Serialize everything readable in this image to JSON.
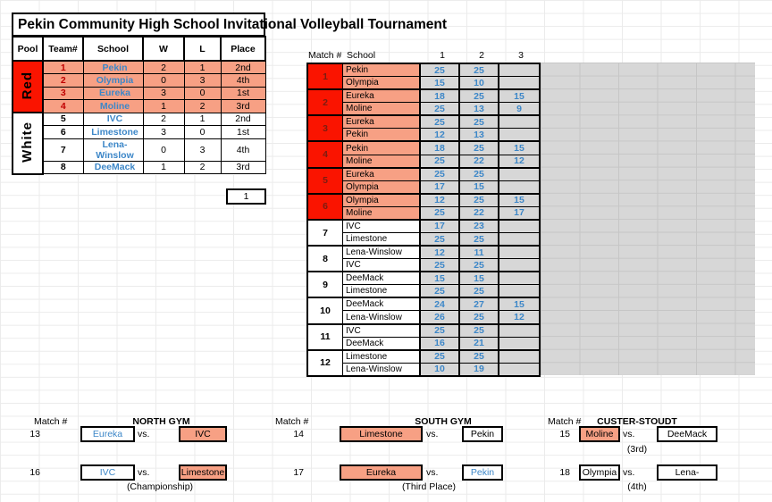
{
  "title": "Pekin Community High School Invitational Volleyball Tournament",
  "colors": {
    "pool_red": "#FA1400",
    "salmon": "#F7A084",
    "score_gray": "#D7D7D7",
    "blue_text": "#3D87C8",
    "match_num_dark_red": "#7B1D12",
    "team_num_red": "#C00000"
  },
  "seed_box": "1",
  "pool_table": {
    "headers": [
      "Pool",
      "Team#",
      "School",
      "W",
      "L",
      "Place"
    ],
    "pools": [
      {
        "name": "Red",
        "teams": [
          {
            "num": "1",
            "school": "Pekin",
            "w": "2",
            "l": "1",
            "place": "2nd"
          },
          {
            "num": "2",
            "school": "Olympia",
            "w": "0",
            "l": "3",
            "place": "4th"
          },
          {
            "num": "3",
            "school": "Eureka",
            "w": "3",
            "l": "0",
            "place": "1st"
          },
          {
            "num": "4",
            "school": "Moline",
            "w": "1",
            "l": "2",
            "place": "3rd"
          }
        ]
      },
      {
        "name": "White",
        "teams": [
          {
            "num": "5",
            "school": "IVC",
            "w": "2",
            "l": "1",
            "place": "2nd"
          },
          {
            "num": "6",
            "school": "Limestone",
            "w": "3",
            "l": "0",
            "place": "1st"
          },
          {
            "num": "7",
            "school": "Lena-Winslow",
            "w": "0",
            "l": "3",
            "place": "4th"
          },
          {
            "num": "8",
            "school": "DeeMack",
            "w": "1",
            "l": "2",
            "place": "3rd"
          }
        ]
      }
    ]
  },
  "match_table": {
    "headers": {
      "match": "Match #",
      "school": "School",
      "g1": "1",
      "g2": "2",
      "g3": "3"
    },
    "matches": [
      {
        "num": "1",
        "pool": "red",
        "rows": [
          {
            "school": "Pekin",
            "scores": [
              "25",
              "25",
              ""
            ]
          },
          {
            "school": "Olympia",
            "scores": [
              "15",
              "10",
              ""
            ]
          }
        ]
      },
      {
        "num": "2",
        "pool": "red",
        "rows": [
          {
            "school": "Eureka",
            "scores": [
              "18",
              "25",
              "15"
            ]
          },
          {
            "school": "Moline",
            "scores": [
              "25",
              "13",
              "9"
            ]
          }
        ]
      },
      {
        "num": "3",
        "pool": "red",
        "rows": [
          {
            "school": "Eureka",
            "scores": [
              "25",
              "25",
              ""
            ]
          },
          {
            "school": "Pekin",
            "scores": [
              "12",
              "13",
              ""
            ]
          }
        ]
      },
      {
        "num": "4",
        "pool": "red",
        "rows": [
          {
            "school": "Pekin",
            "scores": [
              "18",
              "25",
              "15"
            ]
          },
          {
            "school": "Moline",
            "scores": [
              "25",
              "22",
              "12"
            ]
          }
        ]
      },
      {
        "num": "5",
        "pool": "red",
        "rows": [
          {
            "school": "Eureka",
            "scores": [
              "25",
              "25",
              ""
            ]
          },
          {
            "school": "Olympia",
            "scores": [
              "17",
              "15",
              ""
            ]
          }
        ]
      },
      {
        "num": "6",
        "pool": "red",
        "rows": [
          {
            "school": "Olympia",
            "scores": [
              "12",
              "25",
              "15"
            ]
          },
          {
            "school": "Moline",
            "scores": [
              "25",
              "22",
              "17"
            ]
          }
        ]
      },
      {
        "num": "7",
        "pool": "white",
        "rows": [
          {
            "school": "IVC",
            "scores": [
              "17",
              "23",
              ""
            ]
          },
          {
            "school": "Limestone",
            "scores": [
              "25",
              "25",
              ""
            ]
          }
        ]
      },
      {
        "num": "8",
        "pool": "white",
        "rows": [
          {
            "school": "Lena-Winslow",
            "scores": [
              "12",
              "11",
              ""
            ]
          },
          {
            "school": "IVC",
            "scores": [
              "25",
              "25",
              ""
            ]
          }
        ]
      },
      {
        "num": "9",
        "pool": "white",
        "rows": [
          {
            "school": "DeeMack",
            "scores": [
              "15",
              "15",
              ""
            ]
          },
          {
            "school": "Limestone",
            "scores": [
              "25",
              "25",
              ""
            ]
          }
        ]
      },
      {
        "num": "10",
        "pool": "white",
        "rows": [
          {
            "school": "DeeMack",
            "scores": [
              "24",
              "27",
              "15"
            ]
          },
          {
            "school": "Lena-Winslow",
            "scores": [
              "26",
              "25",
              "12"
            ]
          }
        ]
      },
      {
        "num": "11",
        "pool": "white",
        "rows": [
          {
            "school": "IVC",
            "scores": [
              "25",
              "25",
              ""
            ]
          },
          {
            "school": "DeeMack",
            "scores": [
              "16",
              "21",
              ""
            ]
          }
        ]
      },
      {
        "num": "12",
        "pool": "white",
        "rows": [
          {
            "school": "Limestone",
            "scores": [
              "25",
              "25",
              ""
            ]
          },
          {
            "school": "Lena-Winslow",
            "scores": [
              "10",
              "19",
              ""
            ]
          }
        ]
      }
    ]
  },
  "bottom_sections": [
    {
      "id": "north",
      "match_header": "Match #",
      "gym": "NORTH GYM",
      "matches": [
        {
          "num": "13",
          "left": {
            "label": "Eureka",
            "fill": "white",
            "text": "blue"
          },
          "vs": "vs.",
          "right": {
            "label": "IVC",
            "fill": "salmon",
            "text": "black"
          },
          "note": ""
        },
        {
          "num": "16",
          "left": {
            "label": "IVC",
            "fill": "white",
            "text": "blue"
          },
          "vs": "vs.",
          "right": {
            "label": "Limestone",
            "fill": "salmon",
            "text": "black"
          },
          "note": "(Championship)"
        }
      ]
    },
    {
      "id": "south",
      "match_header": "Match #",
      "gym": "SOUTH GYM",
      "matches": [
        {
          "num": "14",
          "left": {
            "label": "Limestone",
            "fill": "salmon",
            "text": "black"
          },
          "vs": "vs.",
          "right": {
            "label": "Pekin",
            "fill": "white",
            "text": "black"
          },
          "note": ""
        },
        {
          "num": "17",
          "left": {
            "label": "Eureka",
            "fill": "salmon",
            "text": "black"
          },
          "vs": "vs.",
          "right": {
            "label": "Pekin",
            "fill": "white",
            "text": "blue"
          },
          "note": "(Third Place)"
        }
      ]
    },
    {
      "id": "custer",
      "match_header": "Match #",
      "gym": "CUSTER-STOUDT",
      "matches": [
        {
          "num": "15",
          "left": {
            "label": "Moline",
            "fill": "salmon",
            "text": "black"
          },
          "vs": "vs.",
          "right": {
            "label": "DeeMack",
            "fill": "white",
            "text": "black"
          },
          "note": "(3rd)"
        },
        {
          "num": "18",
          "left": {
            "label": "Olympia",
            "fill": "white",
            "text": "black"
          },
          "vs": "vs.",
          "right": {
            "label": "Lena-Winslow",
            "fill": "white",
            "text": "black"
          },
          "note": "(4th)"
        }
      ]
    }
  ]
}
